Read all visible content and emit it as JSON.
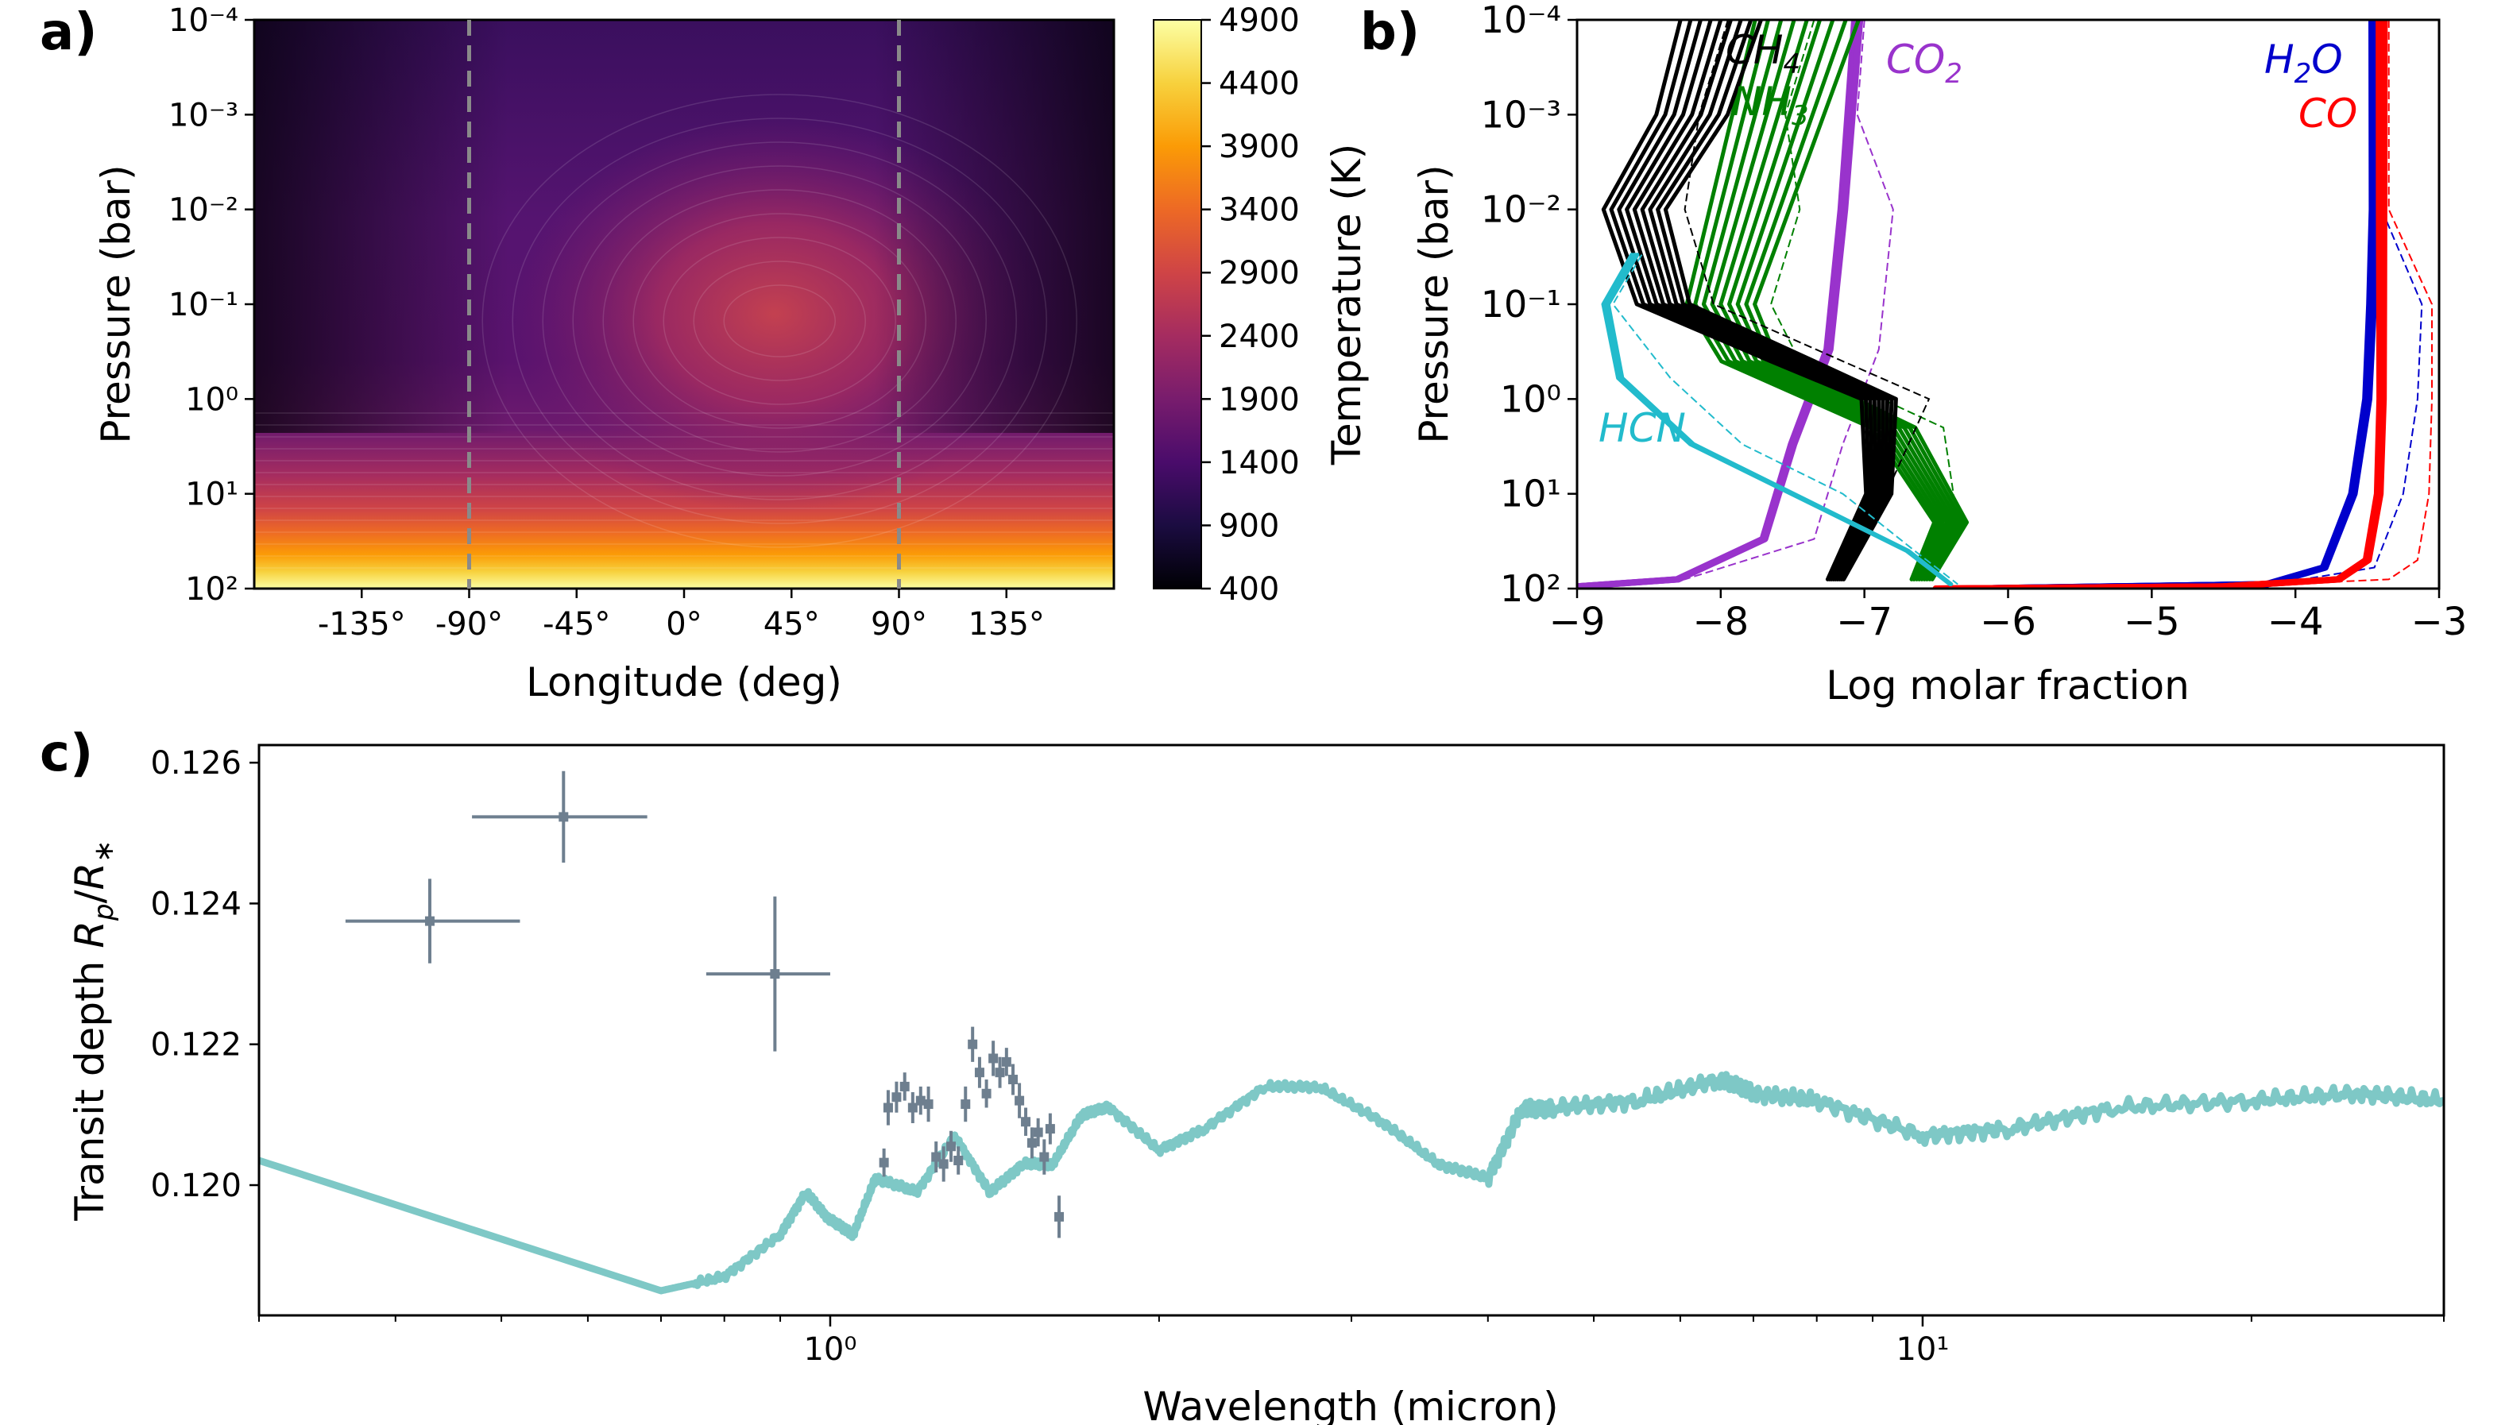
{
  "panels": {
    "a": {
      "letter": "a)"
    },
    "b": {
      "letter": "b)"
    },
    "c": {
      "letter": "c)"
    }
  },
  "colors": {
    "inferno": [
      "#000004",
      "#1b0c41",
      "#4a0c6b",
      "#781c6d",
      "#a52c60",
      "#cf4446",
      "#ed6925",
      "#fb9b06",
      "#f7d13d",
      "#fcffa4"
    ],
    "ch4": "#000000",
    "nh3": "#008000",
    "co2": "#9933cc",
    "hcn": "#22bbcc",
    "h2o": "#0000cc",
    "co": "#ff0000",
    "model": "#7ec8c6",
    "obs": "#6e7f8f"
  },
  "chart_data": [
    {
      "panel": "a",
      "type": "heatmap",
      "title": "",
      "xlabel": "Longitude (deg)",
      "ylabel": "Pressure (bar)",
      "x_ticks": [
        "-135°",
        "-90°",
        "-45°",
        "0°",
        "45°",
        "90°",
        "135°"
      ],
      "x_tick_values": [
        -135,
        -90,
        -45,
        0,
        45,
        90,
        135
      ],
      "xlim": [
        -180,
        180
      ],
      "y_scale": "log",
      "y_ticks": [
        "10⁻⁴",
        "10⁻³",
        "10⁻²",
        "10⁻¹",
        "10⁰",
        "10¹",
        "10²"
      ],
      "ylim": [
        0.0001,
        100
      ],
      "y_inverted": true,
      "vlines": [
        -90,
        90
      ],
      "colorbar": {
        "label": "Temperature (K)",
        "ticks": [
          "4900",
          "4400",
          "3900",
          "3400",
          "2900",
          "2400",
          "1900",
          "1400",
          "900",
          "400"
        ],
        "range": [
          400,
          4900
        ]
      },
      "hotspot": {
        "lon": 40,
        "pressure": 0.15,
        "temperature": 2800
      }
    },
    {
      "panel": "b",
      "type": "line",
      "title": "",
      "xlabel": "Log molar fraction",
      "ylabel": "Pressure (bar)",
      "xlim": [
        -9,
        -3
      ],
      "x_ticks": [
        "−9",
        "−8",
        "−7",
        "−6",
        "−5",
        "−4",
        "−3"
      ],
      "y_scale": "log",
      "y_ticks": [
        "10⁻⁴",
        "10⁻³",
        "10⁻²",
        "10⁻¹",
        "10⁰",
        "10¹",
        "10²"
      ],
      "ylim": [
        0.0001,
        100
      ],
      "y_inverted": true,
      "species_labels": {
        "ch4": "CH4",
        "nh3": "NH3",
        "co2": "CO2",
        "hcn": "HCN",
        "h2o": "H2O",
        "co": "CO"
      },
      "series": [
        {
          "name": "H2O",
          "x": [
            -3.45,
            -3.45,
            -3.47,
            -3.5,
            -3.6,
            -3.8,
            -4.2,
            -6.3
          ],
          "y": [
            0.0001,
            0.01,
            0.1,
            1,
            10,
            60,
            90,
            100
          ]
        },
        {
          "name": "CO",
          "x": [
            -3.4,
            -3.4,
            -3.4,
            -3.4,
            -3.42,
            -3.5,
            -3.7,
            -4.5,
            -6.5
          ],
          "y": [
            0.0001,
            0.01,
            0.1,
            1,
            10,
            50,
            80,
            95,
            100
          ]
        },
        {
          "name": "CO2",
          "x": [
            -7.05,
            -7.1,
            -7.15,
            -7.25,
            -7.5,
            -7.7,
            -8.3,
            -9
          ],
          "y": [
            0.0001,
            0.001,
            0.01,
            0.3,
            3,
            30,
            80,
            95
          ]
        },
        {
          "name": "NH3",
          "x": [
            -7.4,
            -7.6,
            -7.8,
            -8.0,
            -7.8,
            -6.8,
            -6.4,
            -6.6
          ],
          "y": [
            0.0001,
            0.001,
            0.01,
            0.1,
            0.4,
            2,
            20,
            80
          ]
        },
        {
          "name": "CH4",
          "x": [
            -8.0,
            -8.2,
            -8.6,
            -8.4,
            -7.5,
            -6.9,
            -6.9,
            -7.2
          ],
          "y": [
            0.0001,
            0.001,
            0.01,
            0.1,
            0.4,
            1,
            10,
            80
          ]
        },
        {
          "name": "HCN",
          "x": [
            -8.6,
            -8.8,
            -8.7,
            -8.2,
            -7.5,
            -6.7,
            -6.4
          ],
          "y": [
            0.03,
            0.1,
            0.6,
            3,
            10,
            40,
            90
          ]
        }
      ]
    },
    {
      "panel": "c",
      "type": "line",
      "title": "",
      "xlabel": "Wavelength (micron)",
      "ylabel": "Transit depth R_p/R_*",
      "x_scale": "log",
      "xlim": [
        0.3,
        30
      ],
      "x_ticks": [
        "10⁰",
        "10¹"
      ],
      "ylim": [
        0.11815,
        0.12625
      ],
      "y_ticks": [
        "0.120",
        "0.122",
        "0.124",
        "0.126"
      ],
      "series": [
        {
          "name": "",
          "x": [
            0.3,
            0.7,
            0.8,
            0.9,
            0.95,
            1.0,
            1.05,
            1.1,
            1.2,
            1.3,
            1.4,
            1.5,
            1.6,
            1.7,
            1.8,
            2.0,
            2.2,
            2.5,
            2.8,
            3.2,
            3.6,
            4.0,
            4.3,
            4.6,
            5.5,
            6.5,
            7.0,
            8.0,
            10.0,
            12.0,
            15.0,
            20.0,
            25.0,
            30.0
          ],
          "y": [
            0.12035,
            0.1185,
            0.1187,
            0.1193,
            0.1199,
            0.1195,
            0.1193,
            0.1201,
            0.1199,
            0.1207,
            0.1199,
            0.1203,
            0.1203,
            0.121,
            0.1211,
            0.1205,
            0.1208,
            0.1214,
            0.1214,
            0.1209,
            0.1203,
            0.1201,
            0.1211,
            0.1211,
            0.1212,
            0.1215,
            0.1213,
            0.1212,
            0.1207,
            0.1208,
            0.1211,
            0.1212,
            0.1213,
            0.1212
          ]
        }
      ],
      "observations": [
        {
          "x": 0.43,
          "xlo": 0.36,
          "xhi": 0.52,
          "y": 0.12375,
          "yerr": 0.0006
        },
        {
          "x": 0.57,
          "xlo": 0.47,
          "xhi": 0.68,
          "y": 0.12523,
          "yerr": 0.00065
        },
        {
          "x": 0.89,
          "xlo": 0.77,
          "xhi": 1.0,
          "y": 0.123,
          "yerr": 0.0011
        },
        {
          "x": 1.12,
          "y": 0.12032,
          "yerr": 0.0002
        },
        {
          "x": 1.13,
          "y": 0.1211,
          "yerr": 0.00025
        },
        {
          "x": 1.15,
          "y": 0.12125,
          "yerr": 0.00022
        },
        {
          "x": 1.17,
          "y": 0.1214,
          "yerr": 0.0002
        },
        {
          "x": 1.19,
          "y": 0.1211,
          "yerr": 0.00022
        },
        {
          "x": 1.21,
          "y": 0.1212,
          "yerr": 0.0002
        },
        {
          "x": 1.23,
          "y": 0.12115,
          "yerr": 0.00025
        },
        {
          "x": 1.25,
          "y": 0.1204,
          "yerr": 0.00022
        },
        {
          "x": 1.27,
          "y": 0.1203,
          "yerr": 0.00025
        },
        {
          "x": 1.29,
          "y": 0.12055,
          "yerr": 0.00022
        },
        {
          "x": 1.31,
          "y": 0.12035,
          "yerr": 0.0002
        },
        {
          "x": 1.33,
          "y": 0.12115,
          "yerr": 0.00025
        },
        {
          "x": 1.35,
          "y": 0.122,
          "yerr": 0.00025
        },
        {
          "x": 1.37,
          "y": 0.1216,
          "yerr": 0.00022
        },
        {
          "x": 1.39,
          "y": 0.1213,
          "yerr": 0.0002
        },
        {
          "x": 1.41,
          "y": 0.1218,
          "yerr": 0.00025
        },
        {
          "x": 1.43,
          "y": 0.1216,
          "yerr": 0.00022
        },
        {
          "x": 1.45,
          "y": 0.12175,
          "yerr": 0.0002
        },
        {
          "x": 1.47,
          "y": 0.1215,
          "yerr": 0.00022
        },
        {
          "x": 1.49,
          "y": 0.1212,
          "yerr": 0.00025
        },
        {
          "x": 1.51,
          "y": 0.1209,
          "yerr": 0.0002
        },
        {
          "x": 1.53,
          "y": 0.1206,
          "yerr": 0.00022
        },
        {
          "x": 1.55,
          "y": 0.12075,
          "yerr": 0.0002
        },
        {
          "x": 1.57,
          "y": 0.1204,
          "yerr": 0.00025
        },
        {
          "x": 1.59,
          "y": 0.1208,
          "yerr": 0.00022
        },
        {
          "x": 1.62,
          "y": 0.11955,
          "yerr": 0.0003
        }
      ]
    }
  ]
}
